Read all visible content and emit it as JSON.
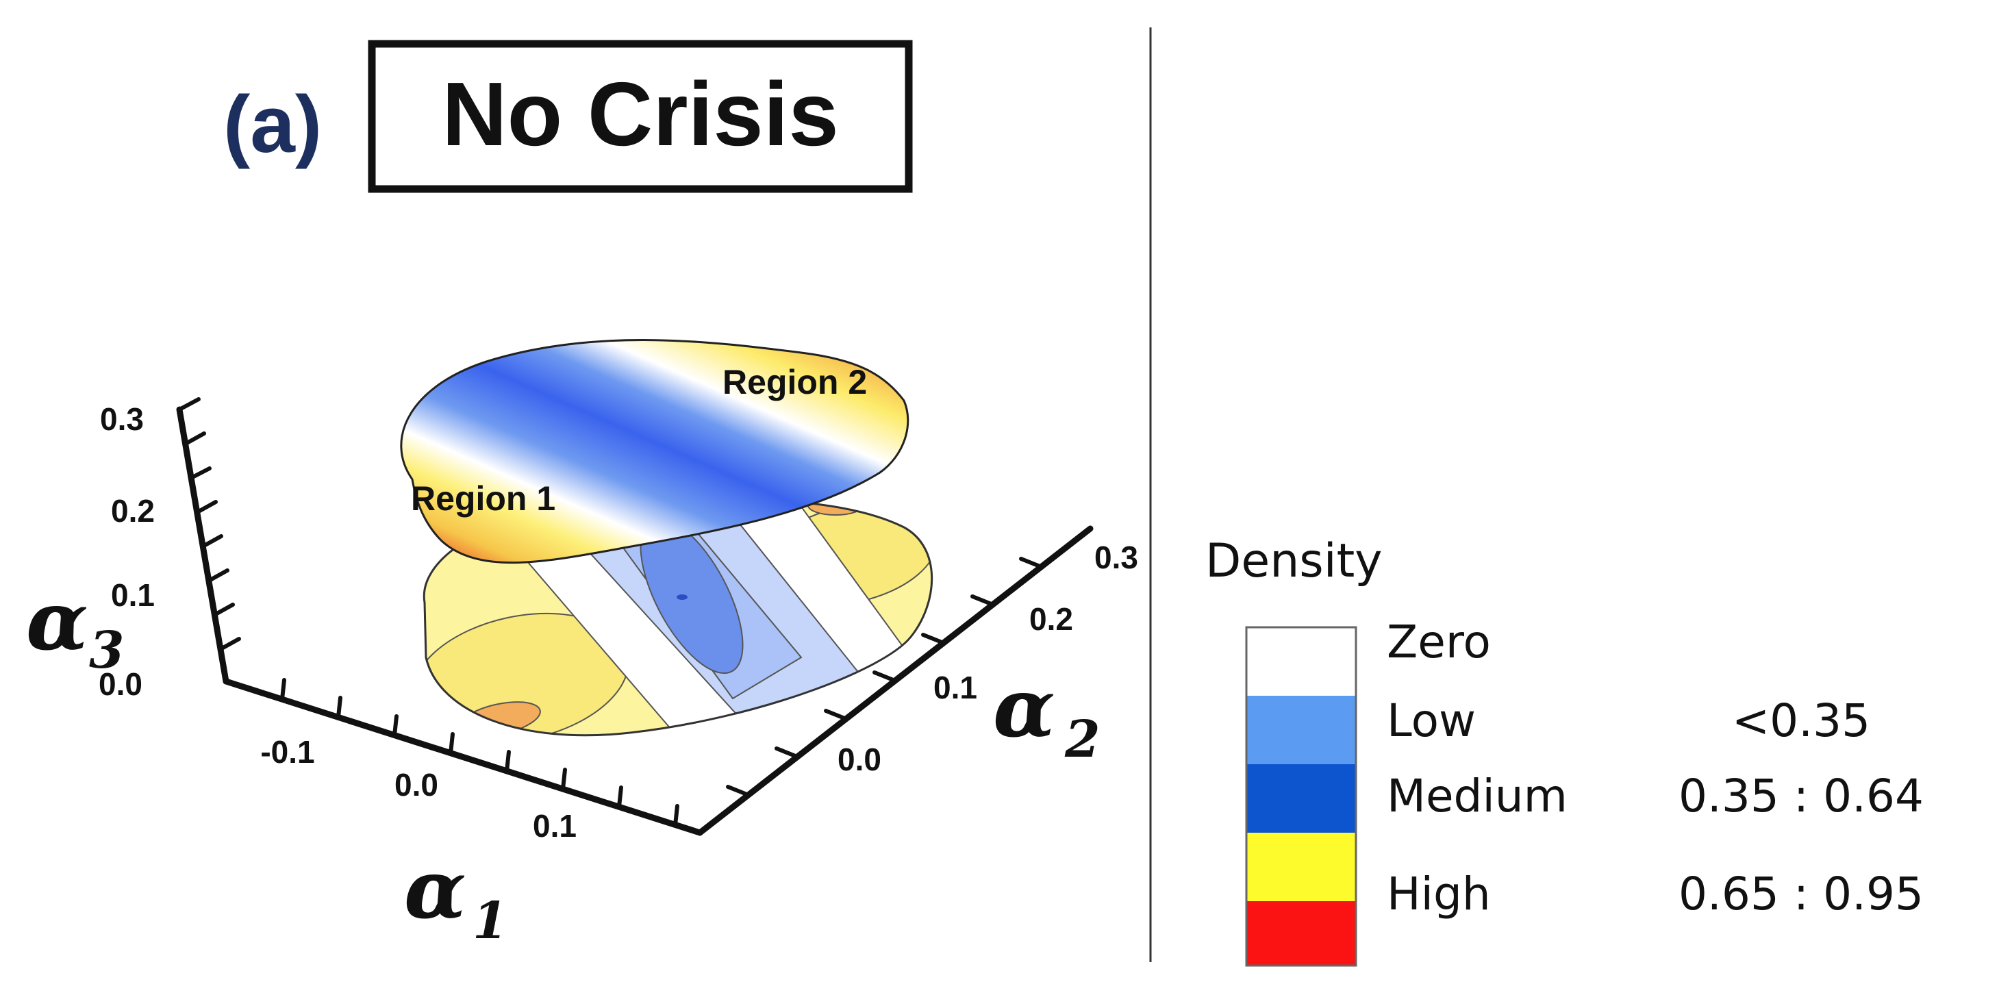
{
  "panel": {
    "letter": "(a)",
    "title": "No Crisis"
  },
  "chart_data": {
    "type": "surface3d",
    "description_labels": {
      "region1": "Region 1",
      "region2": "Region 2"
    },
    "axes": {
      "x": {
        "symbol": "α",
        "subscript": "1",
        "ticks": [
          "-0.1",
          "0.0",
          "0.1"
        ]
      },
      "y": {
        "symbol": "α",
        "subscript": "2",
        "ticks": [
          "0.0",
          "0.1",
          "0.2",
          "0.3"
        ]
      },
      "z": {
        "symbol": "α",
        "subscript": "3",
        "ticks": [
          "0.0",
          "0.1",
          "0.2",
          "0.3"
        ]
      }
    },
    "legend": {
      "title": "Density",
      "entries": [
        {
          "label": "Zero",
          "range": "",
          "color": "#ffffff"
        },
        {
          "label": "Low",
          "range": "<0.35",
          "color": "#5b9bf2"
        },
        {
          "label": "Medium",
          "range": "0.35 : 0.64",
          "color": "#0d55cf"
        },
        {
          "label": "High",
          "range": "0.65 : 0.95",
          "color": "#fdfb2c"
        },
        {
          "label": "",
          "range": "",
          "color": "#fb1212"
        }
      ]
    },
    "colors": {
      "title_letter": "#1d2f5e",
      "axis": "#111111",
      "divider": "#333333"
    }
  }
}
